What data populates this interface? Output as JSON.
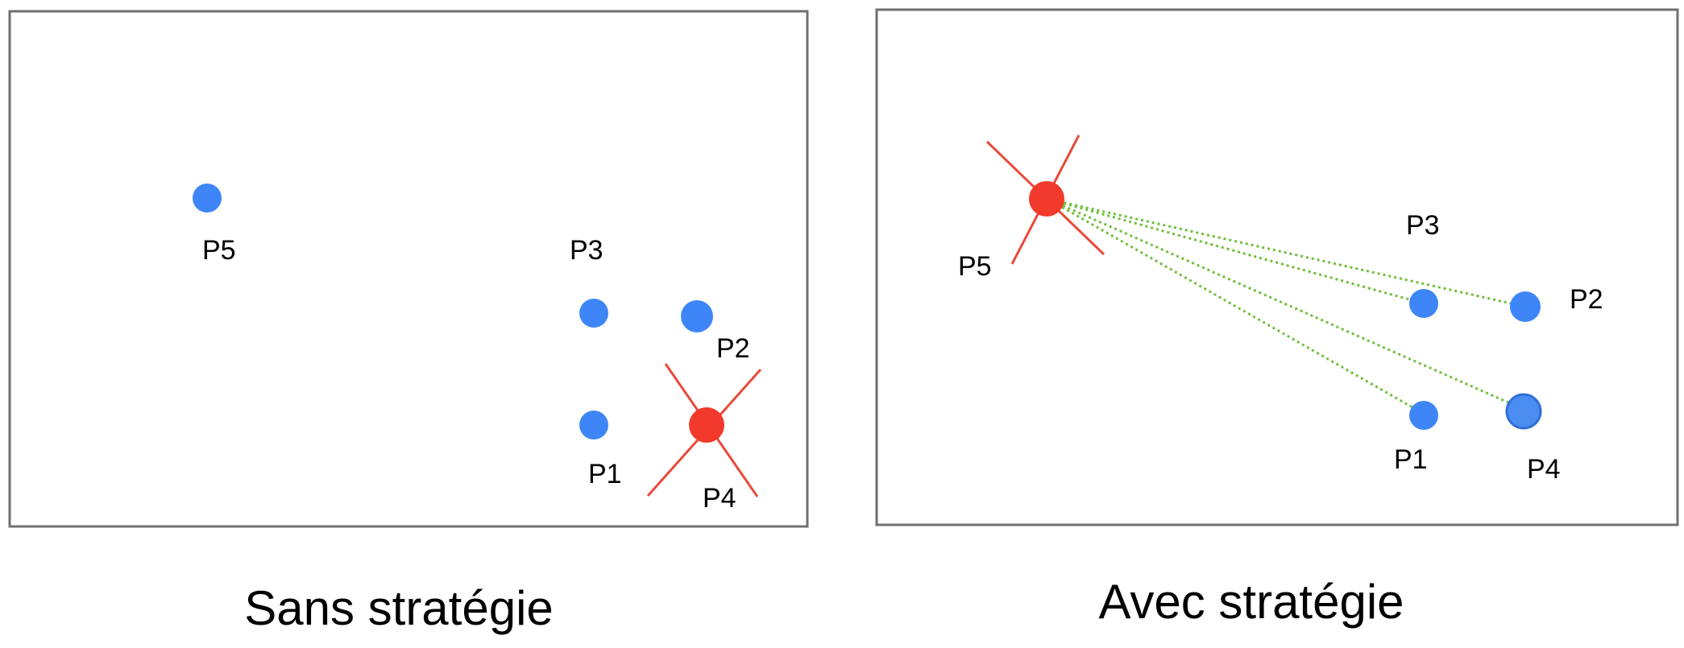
{
  "colors": {
    "frame": "#707070",
    "point": "#3e86f7",
    "point_outline": "#2f6fd6",
    "target": "#f23a2c",
    "cross": "#e84a3c",
    "link": "#6fbf3a"
  },
  "panels": [
    {
      "caption": "Sans stratégie",
      "target_point": "P4",
      "points": [
        {
          "id": "P5",
          "label": "P5",
          "marked": false
        },
        {
          "id": "P3",
          "label": "P3",
          "marked": false
        },
        {
          "id": "P2",
          "label": "P2",
          "marked": false
        },
        {
          "id": "P1",
          "label": "P1",
          "marked": false
        },
        {
          "id": "P4",
          "label": "P4",
          "marked": true
        }
      ],
      "links": []
    },
    {
      "caption": "Avec stratégie",
      "target_point": "P5",
      "points": [
        {
          "id": "P5",
          "label": "P5",
          "marked": true
        },
        {
          "id": "P3",
          "label": "P3",
          "marked": false
        },
        {
          "id": "P2",
          "label": "P2",
          "marked": false
        },
        {
          "id": "P1",
          "label": "P1",
          "marked": false
        },
        {
          "id": "P4",
          "label": "P4",
          "marked": false
        }
      ],
      "links": [
        {
          "from": "P5",
          "to": "P3"
        },
        {
          "from": "P5",
          "to": "P2"
        },
        {
          "from": "P5",
          "to": "P1"
        },
        {
          "from": "P5",
          "to": "P4"
        }
      ]
    }
  ]
}
